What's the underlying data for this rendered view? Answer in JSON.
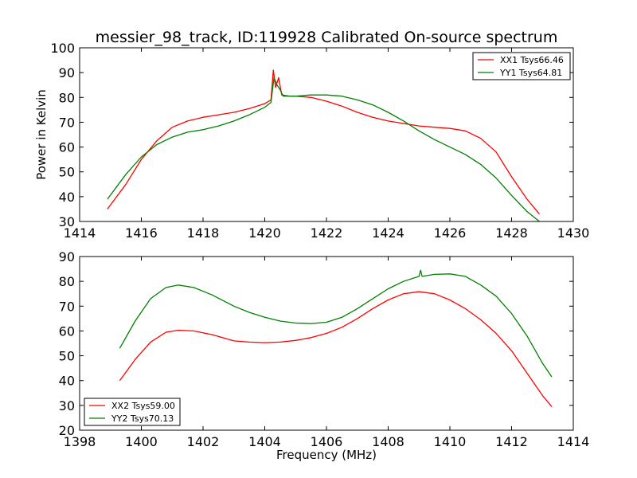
{
  "chart_data": [
    {
      "type": "line",
      "title": "messier_98_track, ID:119928 Calibrated On-source spectrum",
      "xlabel": "",
      "ylabel": "Power in Kelvin",
      "xlim": [
        1414,
        1430
      ],
      "ylim": [
        30,
        100
      ],
      "xticks": [
        "1414",
        "1416",
        "1418",
        "1420",
        "1422",
        "1424",
        "1426",
        "1428",
        "1430"
      ],
      "yticks": [
        "30",
        "40",
        "50",
        "60",
        "70",
        "80",
        "90",
        "100"
      ],
      "legend_position": "top-right",
      "series": [
        {
          "name": "XX1 Tsys66.46",
          "color": "#ff0000",
          "points": [
            [
              1414.9,
              35
            ],
            [
              1415.5,
              45
            ],
            [
              1416,
              55
            ],
            [
              1416.5,
              62.5
            ],
            [
              1417,
              68
            ],
            [
              1417.5,
              70.5
            ],
            [
              1418,
              72
            ],
            [
              1418.5,
              73
            ],
            [
              1419,
              74
            ],
            [
              1419.5,
              75.5
            ],
            [
              1420,
              77.5
            ],
            [
              1420.2,
              79
            ],
            [
              1420.28,
              91
            ],
            [
              1420.35,
              84
            ],
            [
              1420.45,
              88
            ],
            [
              1420.55,
              81
            ],
            [
              1420.8,
              80.5
            ],
            [
              1421,
              80.5
            ],
            [
              1421.5,
              80
            ],
            [
              1422,
              78.5
            ],
            [
              1422.5,
              76.5
            ],
            [
              1423,
              74
            ],
            [
              1423.5,
              72
            ],
            [
              1424,
              70.5
            ],
            [
              1424.5,
              69.5
            ],
            [
              1425,
              68.5
            ],
            [
              1425.5,
              68
            ],
            [
              1426,
              67.5
            ],
            [
              1426.5,
              66.5
            ],
            [
              1427,
              63.5
            ],
            [
              1427.5,
              58
            ],
            [
              1428,
              48
            ],
            [
              1428.5,
              39
            ],
            [
              1428.9,
              33
            ]
          ]
        },
        {
          "name": "YY1 Tsys64.81",
          "color": "#008000",
          "points": [
            [
              1414.9,
              39
            ],
            [
              1415.5,
              49
            ],
            [
              1416,
              56
            ],
            [
              1416.5,
              61
            ],
            [
              1417,
              64
            ],
            [
              1417.5,
              66
            ],
            [
              1418,
              67
            ],
            [
              1418.5,
              68.5
            ],
            [
              1419,
              70.5
            ],
            [
              1419.5,
              73
            ],
            [
              1420,
              76
            ],
            [
              1420.2,
              78
            ],
            [
              1420.3,
              88
            ],
            [
              1420.4,
              85
            ],
            [
              1420.5,
              83
            ],
            [
              1420.6,
              80.5
            ],
            [
              1421,
              80.5
            ],
            [
              1421.5,
              81
            ],
            [
              1422,
              81
            ],
            [
              1422.5,
              80.5
            ],
            [
              1423,
              79
            ],
            [
              1423.5,
              77
            ],
            [
              1424,
              74
            ],
            [
              1424.5,
              70.5
            ],
            [
              1425,
              66.5
            ],
            [
              1425.5,
              63
            ],
            [
              1426,
              60
            ],
            [
              1426.5,
              57
            ],
            [
              1427,
              53
            ],
            [
              1427.5,
              47.5
            ],
            [
              1428,
              40.5
            ],
            [
              1428.5,
              34
            ],
            [
              1428.9,
              30
            ]
          ]
        }
      ]
    },
    {
      "type": "line",
      "title": "",
      "xlabel": "Frequency (MHz)",
      "ylabel": "",
      "xlim": [
        1398,
        1414
      ],
      "ylim": [
        20,
        90
      ],
      "xticks": [
        "1398",
        "1400",
        "1402",
        "1404",
        "1406",
        "1408",
        "1410",
        "1412",
        "1414"
      ],
      "yticks": [
        "20",
        "30",
        "40",
        "50",
        "60",
        "70",
        "80",
        "90"
      ],
      "legend_position": "bottom-left",
      "series": [
        {
          "name": "XX2 Tsys59.00",
          "color": "#ff0000",
          "points": [
            [
              1399.3,
              40
            ],
            [
              1399.8,
              48.5
            ],
            [
              1400.3,
              55.5
            ],
            [
              1400.8,
              59.5
            ],
            [
              1401.2,
              60.3
            ],
            [
              1401.7,
              60
            ],
            [
              1402.3,
              58.5
            ],
            [
              1403,
              56
            ],
            [
              1403.5,
              55.5
            ],
            [
              1404,
              55.3
            ],
            [
              1404.5,
              55.5
            ],
            [
              1405,
              56.2
            ],
            [
              1405.5,
              57.3
            ],
            [
              1406,
              59
            ],
            [
              1406.5,
              61.5
            ],
            [
              1407,
              65
            ],
            [
              1407.5,
              69
            ],
            [
              1408,
              72.5
            ],
            [
              1408.5,
              75
            ],
            [
              1409,
              75.8
            ],
            [
              1409.5,
              75
            ],
            [
              1410,
              72.5
            ],
            [
              1410.5,
              69
            ],
            [
              1411,
              64.5
            ],
            [
              1411.5,
              59
            ],
            [
              1412,
              52
            ],
            [
              1412.5,
              43
            ],
            [
              1413,
              34
            ],
            [
              1413.3,
              29.5
            ]
          ]
        },
        {
          "name": "YY2 Tsys70.13",
          "color": "#008000",
          "points": [
            [
              1399.3,
              53
            ],
            [
              1399.8,
              64
            ],
            [
              1400.3,
              73
            ],
            [
              1400.8,
              77.5
            ],
            [
              1401.2,
              78.5
            ],
            [
              1401.7,
              77.5
            ],
            [
              1402.3,
              74.5
            ],
            [
              1403,
              70
            ],
            [
              1403.5,
              67.5
            ],
            [
              1404,
              65.5
            ],
            [
              1404.5,
              64
            ],
            [
              1405,
              63.2
            ],
            [
              1405.5,
              63
            ],
            [
              1406,
              63.5
            ],
            [
              1406.5,
              65.5
            ],
            [
              1407,
              69
            ],
            [
              1407.5,
              73
            ],
            [
              1408,
              77
            ],
            [
              1408.5,
              80
            ],
            [
              1409,
              82
            ],
            [
              1409.05,
              84.5
            ],
            [
              1409.1,
              82
            ],
            [
              1409.5,
              82.8
            ],
            [
              1410,
              83
            ],
            [
              1410.5,
              82
            ],
            [
              1411,
              78.5
            ],
            [
              1411.5,
              74
            ],
            [
              1412,
              67
            ],
            [
              1412.5,
              58
            ],
            [
              1413,
              47
            ],
            [
              1413.3,
              41.5
            ]
          ]
        }
      ]
    }
  ]
}
